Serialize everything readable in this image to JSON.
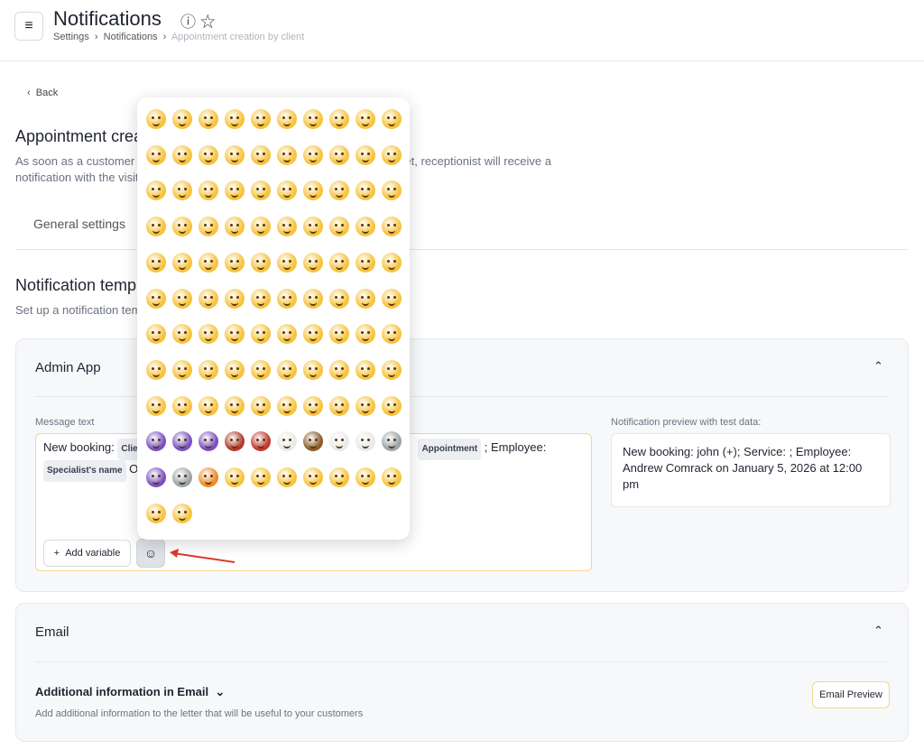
{
  "header": {
    "title": "Notifications",
    "breadcrumbs": [
      "Settings",
      "Notifications",
      "Appointment creation by client"
    ]
  },
  "back": "Back",
  "section": {
    "title": "Appointment creation by client",
    "description": "As soon as a customer creates an appointment via the online booking widget, receptionist will receive a notification with the visit details."
  },
  "tabs": [
    "General settings"
  ],
  "templates": {
    "title": "Notification templates",
    "subtitle": "Set up a notification template"
  },
  "admin_app": {
    "title": "Admin App",
    "message_label": "Message text",
    "message": {
      "text_start": "New booking:",
      "chips": [
        "Client",
        "Appointment",
        "Specialist's name"
      ],
      "text_mid": "; Employee:",
      "text_end": "On"
    },
    "add_variable": "Add variable",
    "preview_label": "Notification preview with test data:",
    "preview_text": "New booking: john (+); Service: ; Employee: Andrew Comrack on January 5, 2026 at 12:00 pm"
  },
  "email": {
    "title": "Email",
    "info_title": "Additional information in Email",
    "info_text": "Add additional information to the letter that will be useful to your customers",
    "preview_button": "Email Preview"
  }
}
